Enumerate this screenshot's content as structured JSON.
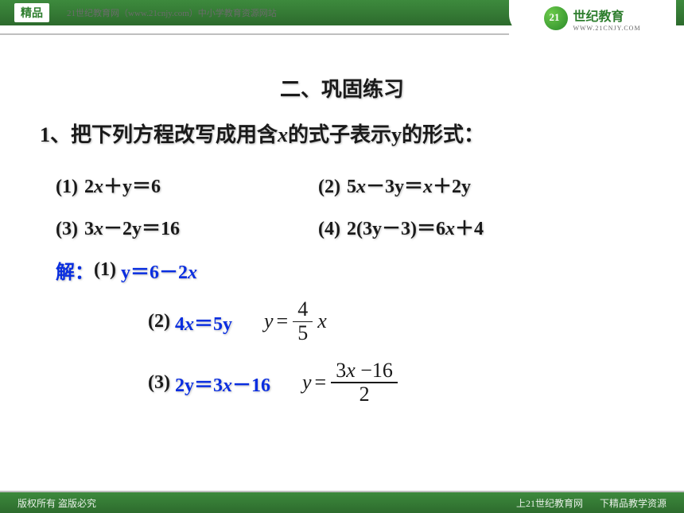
{
  "header": {
    "badge": "精品",
    "site_text": "21世纪教育网（www.21cnjy.com）中小学教育资源网站",
    "logo_main": "世纪教育",
    "logo_sub": "WWW.21CNJY.COM"
  },
  "content": {
    "section_title": "二、巩固练习",
    "question": "1、把下列方程改写成用含x的式子表示y的形式：",
    "equations": [
      {
        "label": "(1)",
        "text": "2x＋y＝6"
      },
      {
        "label": "(2)",
        "text": "5x－3y＝x＋2y"
      },
      {
        "label": "(3)",
        "text": "3x－2y＝16"
      },
      {
        "label": "(4)",
        "text": "2(3y－3)＝6x＋4"
      }
    ],
    "solution_label": "解：",
    "solutions": [
      {
        "label": "(1)",
        "step": "y＝6－2x",
        "result_type": "none"
      },
      {
        "label": "(2)",
        "step": "4x＝5y",
        "result_type": "frac_simple",
        "result": {
          "num": "4",
          "den": "5",
          "after": "x"
        }
      },
      {
        "label": "(3)",
        "step": "2y＝3x－16",
        "result_type": "frac_expr",
        "result": {
          "num": "3x −16",
          "den": "2"
        }
      }
    ]
  },
  "footer": {
    "left": "版权所有   盗版必究",
    "right1": "上21世纪教育网",
    "right2": "下精品教学资源"
  },
  "colors": {
    "green_dark": "#2d6b2d",
    "green_light": "#3d8a3d",
    "blue": "#0a2ee0",
    "black": "#1a1a1a",
    "grey_line": "#bfbfbf"
  }
}
